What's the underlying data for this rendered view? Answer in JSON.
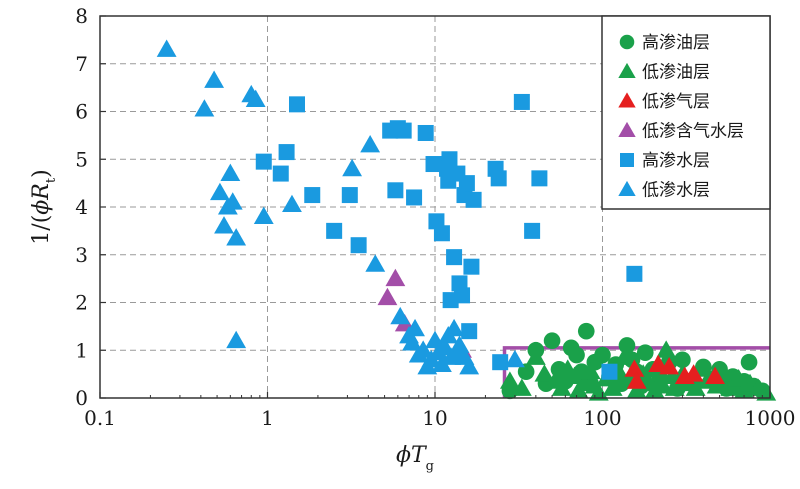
{
  "chart_data": {
    "type": "scatter",
    "x_scale": "log",
    "xlim": [
      0.1,
      1000
    ],
    "ylim": [
      0,
      8
    ],
    "x_ticks": [
      0.1,
      1,
      10,
      100,
      1000
    ],
    "x_tick_labels": [
      "0.1",
      "1",
      "10",
      "100",
      "1000"
    ],
    "y_ticks": [
      0,
      1,
      2,
      3,
      4,
      5,
      6,
      7,
      8
    ],
    "grid": "dashed",
    "xlabel": {
      "main": "ϕT",
      "sub": "g"
    },
    "ylabel": {
      "prefix": "1/(",
      "main": "ϕR",
      "sub": "t",
      "suffix": ")"
    },
    "legend_position": "top-right",
    "cutoff_box": {
      "x": [
        26,
        1000
      ],
      "y": [
        0,
        1.05
      ],
      "color": "#a34ea8"
    },
    "series": [
      {
        "name": "高渗油层",
        "marker": "circle",
        "color": "#1aa14a",
        "points": [
          [
            28,
            0.15
          ],
          [
            35,
            0.55
          ],
          [
            40,
            1.0
          ],
          [
            46,
            0.3
          ],
          [
            50,
            1.2
          ],
          [
            55,
            0.6
          ],
          [
            60,
            0.35
          ],
          [
            65,
            1.05
          ],
          [
            70,
            0.9
          ],
          [
            75,
            0.55
          ],
          [
            80,
            1.4
          ],
          [
            85,
            0.3
          ],
          [
            90,
            0.75
          ],
          [
            100,
            0.9
          ],
          [
            110,
            0.45
          ],
          [
            120,
            0.7
          ],
          [
            130,
            0.3
          ],
          [
            140,
            1.1
          ],
          [
            150,
            0.8
          ],
          [
            160,
            0.55
          ],
          [
            170,
            0.25
          ],
          [
            180,
            0.95
          ],
          [
            200,
            0.6
          ],
          [
            220,
            0.4
          ],
          [
            250,
            0.75
          ],
          [
            280,
            0.2
          ],
          [
            300,
            0.8
          ],
          [
            350,
            0.35
          ],
          [
            400,
            0.65
          ],
          [
            450,
            0.4
          ],
          [
            500,
            0.6
          ],
          [
            550,
            0.2
          ],
          [
            600,
            0.45
          ],
          [
            650,
            0.3
          ],
          [
            700,
            0.35
          ],
          [
            750,
            0.75
          ],
          [
            800,
            0.25
          ],
          [
            900,
            0.15
          ]
        ]
      },
      {
        "name": "低渗油层",
        "marker": "triangle-up",
        "color": "#1aa14a",
        "points": [
          [
            28,
            0.35
          ],
          [
            33,
            0.2
          ],
          [
            40,
            0.85
          ],
          [
            45,
            0.5
          ],
          [
            52,
            0.35
          ],
          [
            57,
            0.2
          ],
          [
            62,
            0.6
          ],
          [
            68,
            0.45
          ],
          [
            72,
            0.15
          ],
          [
            78,
            0.3
          ],
          [
            85,
            0.55
          ],
          [
            90,
            0.25
          ],
          [
            95,
            0.1
          ],
          [
            105,
            0.4
          ],
          [
            115,
            0.2
          ],
          [
            125,
            0.55
          ],
          [
            135,
            0.85
          ],
          [
            145,
            0.35
          ],
          [
            160,
            0.15
          ],
          [
            175,
            0.5
          ],
          [
            190,
            0.3
          ],
          [
            205,
            0.15
          ],
          [
            215,
            0.6
          ],
          [
            230,
            0.25
          ],
          [
            240,
            1.0
          ],
          [
            260,
            0.45
          ],
          [
            270,
            0.2
          ],
          [
            300,
            0.5
          ],
          [
            320,
            0.3
          ],
          [
            360,
            0.2
          ],
          [
            380,
            0.6
          ],
          [
            420,
            0.35
          ],
          [
            480,
            0.25
          ],
          [
            520,
            0.5
          ],
          [
            580,
            0.2
          ],
          [
            650,
            0.4
          ],
          [
            700,
            0.15
          ],
          [
            760,
            0.3
          ],
          [
            850,
            0.2
          ],
          [
            950,
            0.1
          ]
        ]
      },
      {
        "name": "低渗气层",
        "marker": "triangle-up",
        "color": "#e51f1f",
        "points": [
          [
            155,
            0.6
          ],
          [
            160,
            0.35
          ],
          [
            215,
            0.7
          ],
          [
            250,
            0.65
          ],
          [
            310,
            0.45
          ],
          [
            350,
            0.5
          ],
          [
            470,
            0.45
          ]
        ]
      },
      {
        "name": "低渗含气水层",
        "marker": "triangle-up",
        "color": "#a34ea8",
        "points": [
          [
            5.2,
            2.1
          ],
          [
            5.8,
            2.5
          ],
          [
            6.6,
            1.55
          ],
          [
            14.5,
            1.0
          ]
        ]
      },
      {
        "name": "高渗水层",
        "marker": "square",
        "color": "#1a9ae0",
        "points": [
          [
            0.95,
            4.95
          ],
          [
            1.2,
            4.7
          ],
          [
            1.3,
            5.15
          ],
          [
            1.5,
            6.15
          ],
          [
            1.85,
            4.25
          ],
          [
            2.5,
            3.5
          ],
          [
            3.1,
            4.25
          ],
          [
            3.5,
            3.2
          ],
          [
            5.4,
            5.6
          ],
          [
            5.8,
            4.35
          ],
          [
            6.0,
            5.65
          ],
          [
            6.5,
            5.6
          ],
          [
            7.5,
            4.2
          ],
          [
            8.8,
            5.55
          ],
          [
            9.8,
            4.9
          ],
          [
            10.2,
            3.7
          ],
          [
            11.0,
            3.45
          ],
          [
            11.8,
            4.8
          ],
          [
            12.0,
            4.55
          ],
          [
            12.2,
            5.0
          ],
          [
            12.4,
            2.05
          ],
          [
            13.0,
            2.95
          ],
          [
            13.6,
            4.7
          ],
          [
            14.0,
            2.4
          ],
          [
            14.5,
            2.15
          ],
          [
            15.0,
            4.25
          ],
          [
            15.5,
            4.5
          ],
          [
            16.0,
            1.4
          ],
          [
            16.5,
            2.75
          ],
          [
            17.0,
            4.15
          ],
          [
            23.0,
            4.8
          ],
          [
            24.0,
            4.6
          ],
          [
            24.5,
            0.75
          ],
          [
            33.0,
            6.2
          ],
          [
            38.0,
            3.5
          ],
          [
            42.0,
            4.6
          ],
          [
            110,
            0.55
          ],
          [
            155,
            2.6
          ]
        ]
      },
      {
        "name": "低渗水层",
        "marker": "triangle-up",
        "color": "#1a9ae0",
        "points": [
          [
            0.25,
            7.3
          ],
          [
            0.42,
            6.05
          ],
          [
            0.48,
            6.65
          ],
          [
            0.52,
            4.3
          ],
          [
            0.55,
            3.6
          ],
          [
            0.58,
            4.0
          ],
          [
            0.6,
            4.7
          ],
          [
            0.62,
            4.1
          ],
          [
            0.65,
            3.35
          ],
          [
            0.65,
            1.2
          ],
          [
            0.8,
            6.35
          ],
          [
            0.85,
            6.25
          ],
          [
            0.95,
            3.8
          ],
          [
            1.4,
            4.05
          ],
          [
            3.2,
            4.8
          ],
          [
            4.1,
            5.3
          ],
          [
            4.4,
            2.8
          ],
          [
            6.2,
            1.7
          ],
          [
            7.0,
            1.3
          ],
          [
            7.3,
            1.15
          ],
          [
            7.6,
            1.45
          ],
          [
            8.0,
            0.9
          ],
          [
            8.5,
            1.0
          ],
          [
            9.0,
            0.65
          ],
          [
            9.5,
            0.8
          ],
          [
            10.0,
            1.2
          ],
          [
            10.5,
            0.95
          ],
          [
            11.0,
            0.7
          ],
          [
            11.5,
            1.05
          ],
          [
            12.0,
            1.3
          ],
          [
            12.5,
            0.85
          ],
          [
            13.0,
            1.45
          ],
          [
            13.5,
            0.95
          ],
          [
            14.0,
            1.1
          ],
          [
            15.0,
            0.85
          ],
          [
            16.0,
            0.65
          ],
          [
            30.0,
            0.8
          ]
        ]
      }
    ]
  }
}
